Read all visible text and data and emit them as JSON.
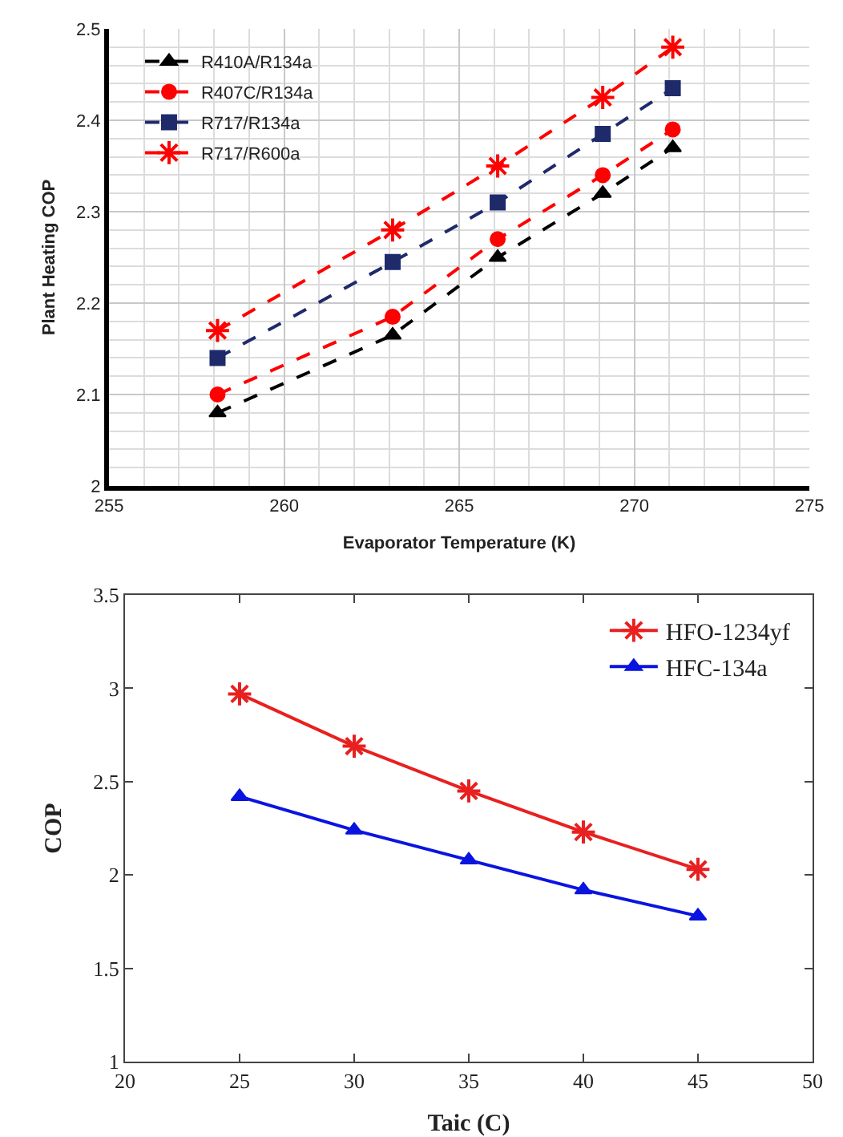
{
  "chart_data": [
    {
      "type": "line",
      "xlabel": "Evaporator Temperature (K)",
      "ylabel": "Plant Heating COP",
      "x": [
        258.1,
        263.1,
        266.1,
        269.1,
        271.1
      ],
      "series": [
        {
          "name": "R410A/R134a",
          "color": "#000000",
          "marker": "triangle",
          "values": [
            2.08,
            2.165,
            2.25,
            2.32,
            2.37
          ]
        },
        {
          "name": "R407C/R134a",
          "color": "#ff0000",
          "marker": "circle",
          "values": [
            2.1,
            2.185,
            2.27,
            2.34,
            2.39
          ]
        },
        {
          "name": "R717/R134a",
          "color": "#1f2a6b",
          "marker": "square",
          "values": [
            2.14,
            2.245,
            2.31,
            2.385,
            2.435
          ]
        },
        {
          "name": "R717/R600a",
          "color": "#ff0000",
          "marker": "cross",
          "values": [
            2.17,
            2.28,
            2.35,
            2.425,
            2.48
          ]
        }
      ],
      "xlim": [
        255,
        275
      ],
      "xticks": [
        255,
        260,
        265,
        270,
        275
      ],
      "ylim": [
        2,
        2.5
      ],
      "yticks": [
        2,
        2.1,
        2.2,
        2.3,
        2.4,
        2.5
      ],
      "grid": true,
      "legend": "top left",
      "line_style": "dashed"
    },
    {
      "type": "line",
      "xlabel": "Taic (C)",
      "ylabel": "COP",
      "x": [
        25,
        30,
        35,
        40,
        45
      ],
      "series": [
        {
          "name": "HFO-1234yf",
          "color": "#e8201f",
          "marker": "cross",
          "values": [
            2.97,
            2.69,
            2.45,
            2.23,
            2.03
          ]
        },
        {
          "name": "HFC-134a",
          "color": "#0a14e0",
          "marker": "triangle",
          "values": [
            2.42,
            2.24,
            2.08,
            1.92,
            1.78
          ]
        }
      ],
      "xlim": [
        20,
        50
      ],
      "xticks": [
        20,
        25,
        30,
        35,
        40,
        45,
        50
      ],
      "ylim": [
        1,
        3.5
      ],
      "yticks": [
        1,
        1.5,
        2,
        2.5,
        3,
        3.5
      ],
      "grid": false,
      "legend": "top right",
      "line_style": "solid"
    }
  ]
}
